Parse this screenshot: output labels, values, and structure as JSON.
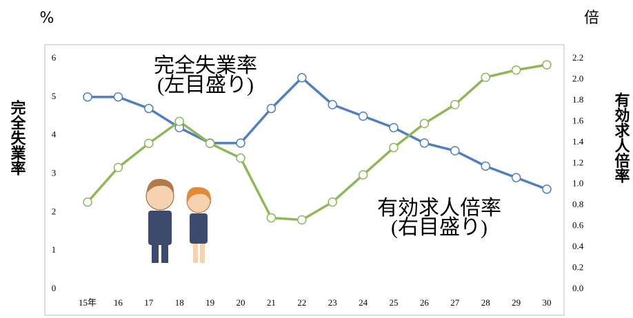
{
  "chart_data": {
    "type": "line",
    "left_unit": "%",
    "right_unit": "倍",
    "ylabel": "完全失業率",
    "y2label": "有効求人倍率",
    "categories": [
      "15年",
      "16",
      "17",
      "18",
      "19",
      "20",
      "21",
      "22",
      "23",
      "24",
      "25",
      "26",
      "27",
      "28",
      "29",
      "30"
    ],
    "series": [
      {
        "name": "完全失業率",
        "color": "#4f7fc0",
        "values": [
          5.0,
          5.0,
          4.7,
          4.2,
          3.8,
          3.8,
          4.7,
          5.5,
          4.8,
          4.5,
          4.2,
          3.8,
          3.6,
          3.2,
          2.9,
          2.6
        ]
      },
      {
        "name": "有効求人倍率",
        "color": "#8fb657",
        "axis": "y2",
        "values": [
          0.83,
          1.16,
          1.39,
          1.6,
          1.39,
          1.25,
          0.68,
          0.66,
          0.83,
          1.09,
          1.35,
          1.58,
          1.76,
          2.02,
          2.09,
          2.14
        ]
      }
    ],
    "annotations": [
      [
        "完全失業率",
        "(左目盛り)"
      ],
      [
        "有効求人倍率",
        "(右目盛り)"
      ]
    ],
    "ylim": [
      0,
      6
    ],
    "yticks": [
      0,
      1,
      2,
      3,
      4,
      5,
      6
    ],
    "y2lim": [
      0,
      2.2
    ],
    "y2ticks": [
      {
        "value": 0,
        "label": "0.0"
      },
      0.2,
      0.4,
      0.6,
      0.8,
      {
        "value": 1,
        "label": "1.0"
      },
      1.2,
      1.4,
      1.6,
      1.8,
      {
        "value": 2,
        "label": "2.0"
      },
      2.2
    ]
  }
}
